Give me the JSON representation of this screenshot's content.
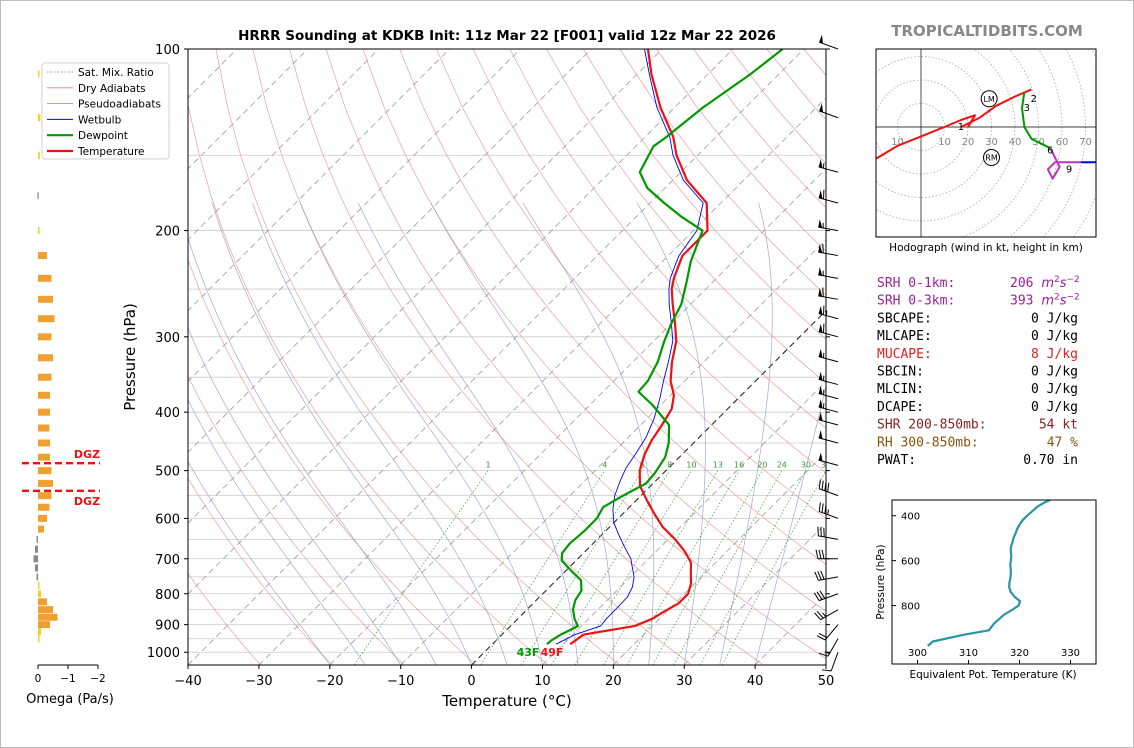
{
  "header": {
    "title": "HRRR Sounding at KDKB Init: 11z Mar 22 [F001] valid 12z Mar 22 2026",
    "site_credit": "TROPICALTIDBITS.COM"
  },
  "chart_data": [
    {
      "type": "line",
      "name": "skewt",
      "xlabel": "Temperature (°C)",
      "ylabel": "Pressure (hPa)",
      "xlim": [
        -40,
        50
      ],
      "ylim": [
        1050,
        100
      ],
      "y_scale": "log",
      "x_ticks": [
        "−40",
        "−30",
        "−20",
        "−10",
        "0",
        "10",
        "20",
        "30",
        "40",
        "50"
      ],
      "y_ticks": [
        "100",
        "200",
        "300",
        "400",
        "500",
        "600",
        "700",
        "800",
        "900",
        "1000"
      ],
      "legend": [
        "Sat. Mix. Ratio",
        "Dry Adiabats",
        "Pseudoadiabats",
        "Wetbulb",
        "Dewpoint",
        "Temperature"
      ],
      "legend_position": "top-left",
      "mixing_ratio_labels": [
        "1",
        "4",
        "6",
        "8",
        "10",
        "13",
        "16",
        "20",
        "24",
        "30",
        "36"
      ],
      "surface_labels": {
        "dewpoint": "43F",
        "temperature": "49F"
      },
      "series": [
        {
          "name": "Temperature",
          "color": "#ee1111",
          "p": [
            970,
            935,
            905,
            880,
            860,
            830,
            800,
            770,
            740,
            710,
            680,
            650,
            620,
            590,
            560,
            530,
            500,
            470,
            445,
            420,
            395,
            375,
            355,
            330,
            305,
            285,
            265,
            250,
            240,
            230,
            220,
            200,
            180,
            165,
            150,
            140,
            125,
            110,
            100
          ],
          "t": [
            11,
            11.5,
            17.5,
            19,
            19.5,
            20.5,
            20.5,
            19.5,
            18,
            16.5,
            14,
            11,
            7.5,
            4.5,
            1.5,
            -1.5,
            -3.7,
            -5.3,
            -6.3,
            -7,
            -7.9,
            -9.5,
            -12,
            -14.5,
            -16.8,
            -19.5,
            -22.5,
            -24.8,
            -26,
            -27,
            -28,
            -28,
            -32,
            -38,
            -43,
            -46,
            -52,
            -58,
            -62
          ]
        },
        {
          "name": "Wetbulb",
          "color": "#0000ee",
          "p": [
            970,
            935,
            905,
            880,
            850,
            810,
            780,
            750,
            720,
            700,
            670,
            640,
            610,
            580,
            550,
            520,
            495,
            470,
            440,
            410,
            380,
            355,
            330,
            305,
            285,
            265,
            250,
            240,
            230,
            220,
            200,
            180,
            165,
            150,
            140,
            125,
            110,
            100
          ],
          "t": [
            9,
            10.3,
            12.7,
            12.5,
            12.5,
            12.4,
            11.7,
            10.5,
            8.7,
            7.5,
            5,
            2.5,
            0,
            -2,
            -3.7,
            -5,
            -6,
            -6.6,
            -7.5,
            -9,
            -11,
            -13,
            -15,
            -17.3,
            -20,
            -23,
            -25.2,
            -26.5,
            -27.5,
            -28.5,
            -29.5,
            -32.5,
            -38.5,
            -43.5,
            -46.5,
            -52.5,
            -58.3,
            -62.5
          ]
        },
        {
          "name": "Dewpoint",
          "color": "#009900",
          "p": [
            970,
            955,
            935,
            905,
            880,
            850,
            820,
            790,
            760,
            730,
            705,
            685,
            660,
            630,
            600,
            575,
            550,
            525,
            505,
            475,
            450,
            420,
            390,
            370,
            355,
            330,
            305,
            285,
            265,
            245,
            225,
            200,
            190,
            180,
            170,
            160,
            145,
            140,
            125,
            110,
            100
          ],
          "t": [
            7.7,
            7.8,
            8.3,
            9.5,
            8,
            6.5,
            5.5,
            5,
            3.5,
            0.5,
            -2,
            -3,
            -3.3,
            -3,
            -3,
            -3.7,
            -2.5,
            -1,
            -1.2,
            -2,
            -3.5,
            -6,
            -11,
            -15,
            -15.2,
            -16.5,
            -18.5,
            -20,
            -21.3,
            -23.5,
            -26,
            -28.7,
            -33.5,
            -38,
            -42.5,
            -45.8,
            -47.5,
            -47,
            -46,
            -44,
            -43
          ]
        }
      ]
    },
    {
      "type": "line",
      "name": "hodograph",
      "xlabel": "Hodograph (wind in kt, height in km)",
      "ring_labels": [
        "10",
        "10",
        "20",
        "30",
        "40",
        "50",
        "60",
        "70"
      ],
      "height_labels": [
        "1",
        "2",
        "3",
        "6",
        "9"
      ],
      "markers": [
        "LM",
        "RM"
      ],
      "series": [
        {
          "name": "0-1 km",
          "color": "#ee1111",
          "u": [
            -44,
            -40,
            -36,
            -30,
            -25,
            -20,
            -10,
            0,
            10,
            17,
            23,
            20
          ],
          "v": [
            -28,
            -25,
            -22,
            -20,
            -17,
            -14,
            -8,
            -4,
            0,
            3,
            5,
            0
          ]
        },
        {
          "name": "1-3 km",
          "color": "#ee1111",
          "u": [
            17,
            25,
            32,
            40,
            47
          ],
          "v": [
            0,
            4,
            9,
            13,
            16
          ]
        },
        {
          "name": "3-6 km",
          "color": "#009900",
          "u": [
            44,
            43,
            44,
            47,
            55
          ],
          "v": [
            15,
            8,
            0,
            -5,
            -9
          ]
        },
        {
          "name": "6-9 km",
          "color": "#bb33bb",
          "u": [
            55,
            59,
            56,
            54,
            57,
            63,
            68
          ],
          "v": [
            -9,
            -17,
            -22,
            -18,
            -15,
            -15,
            -15
          ]
        },
        {
          "name": "9+ km",
          "color": "#0000ee",
          "u": [
            68,
            77,
            80
          ],
          "v": [
            -15,
            -15,
            -23
          ]
        }
      ]
    },
    {
      "type": "line",
      "name": "theta-e",
      "xlabel": "Equivalent Pot. Temperature (K)",
      "ylabel": "Pressure (hPa)",
      "xlim": [
        295,
        335
      ],
      "ylim": [
        1060,
        330
      ],
      "x_ticks": [
        "300",
        "310",
        "320",
        "330"
      ],
      "y_ticks": [
        "400",
        "600",
        "800"
      ],
      "series": [
        {
          "name": "Theta-E",
          "color": "#2a94a8",
          "p": [
            980,
            960,
            930,
            910,
            880,
            860,
            840,
            820,
            800,
            780,
            760,
            740,
            720,
            700,
            680,
            660,
            640,
            620,
            600,
            580,
            560,
            540,
            520,
            500,
            480,
            460,
            440,
            420,
            400,
            380,
            360,
            340,
            330
          ],
          "thetae": [
            302,
            303,
            309,
            314,
            315,
            316,
            317,
            318.5,
            319.8,
            320.1,
            319,
            318.3,
            318,
            318,
            318.2,
            318.3,
            318.3,
            318.2,
            318.3,
            318.4,
            318.3,
            318.3,
            318.6,
            318.8,
            319.2,
            319.5,
            320,
            320.6,
            321.5,
            322.5,
            323.5,
            325,
            326
          ]
        }
      ]
    },
    {
      "type": "bar",
      "name": "omega",
      "xlabel": "Omega (Pa/s)",
      "x_ticks": [
        "0",
        "−1",
        "−2"
      ],
      "dgz_label": "DGZ",
      "p": [
        110,
        130,
        150,
        175,
        200,
        220,
        240,
        260,
        280,
        300,
        325,
        350,
        375,
        400,
        425,
        450,
        475,
        500,
        525,
        550,
        575,
        600,
        625,
        650,
        675,
        700,
        725,
        750,
        775,
        800,
        825,
        850,
        875,
        900,
        925,
        950
      ],
      "omega": [
        -0.05,
        -0.08,
        -0.06,
        0.02,
        -0.05,
        -0.3,
        -0.45,
        -0.5,
        -0.55,
        -0.45,
        -0.5,
        -0.45,
        -0.4,
        -0.4,
        -0.38,
        -0.4,
        -0.4,
        -0.45,
        -0.5,
        -0.45,
        -0.38,
        -0.3,
        -0.2,
        0.05,
        0.1,
        0.15,
        0.1,
        0.05,
        -0.05,
        -0.1,
        -0.3,
        -0.5,
        -0.65,
        -0.4,
        -0.1,
        -0.05
      ]
    }
  ],
  "dgz": {
    "top_hpa": 486,
    "bottom_hpa": 540
  },
  "params": [
    {
      "name": "SRH 0-1km:",
      "value": "206",
      "unit": "m",
      "sup": "2",
      "unit2": "s",
      "sup2": "−2",
      "color": "#992299"
    },
    {
      "name": "SRH 0-3km:",
      "value": "393",
      "unit": "m",
      "sup": "2",
      "unit2": "s",
      "sup2": "−2",
      "color": "#992299"
    },
    {
      "name": "SBCAPE:",
      "value": "0 J/kg",
      "color": "#000000"
    },
    {
      "name": "MLCAPE:",
      "value": "0 J/kg",
      "color": "#000000"
    },
    {
      "name": "MUCAPE:",
      "value": "8 J/kg",
      "color": "#dd2222"
    },
    {
      "name": "SBCIN:",
      "value": "0 J/kg",
      "color": "#000000"
    },
    {
      "name": "MLCIN:",
      "value": "0 J/kg",
      "color": "#000000"
    },
    {
      "name": "DCAPE:",
      "value": "0 J/kg",
      "color": "#000000"
    },
    {
      "name": "SHR 200-850mb:",
      "value": "54 kt",
      "color": "#882222"
    },
    {
      "name": "RH 300-850mb:",
      "value": "47 %",
      "color": "#885511"
    },
    {
      "name": "PWAT:",
      "value": "0.70 in",
      "color": "#000000"
    }
  ],
  "wind_barbs": {
    "p": [
      100,
      130,
      160,
      180,
      200,
      220,
      240,
      260,
      280,
      300,
      330,
      360,
      380,
      400,
      420,
      450,
      490,
      550,
      600,
      650,
      700,
      750,
      800,
      850,
      900,
      950,
      1000
    ],
    "speed_kt": [
      50,
      50,
      55,
      60,
      55,
      60,
      55,
      60,
      65,
      60,
      55,
      55,
      55,
      55,
      50,
      50,
      50,
      40,
      35,
      30,
      30,
      30,
      30,
      25,
      20,
      15,
      10
    ],
    "dir_deg": [
      290,
      290,
      285,
      285,
      280,
      280,
      280,
      280,
      285,
      285,
      285,
      285,
      285,
      285,
      285,
      285,
      285,
      290,
      290,
      280,
      270,
      260,
      250,
      240,
      220,
      210,
      200
    ]
  }
}
